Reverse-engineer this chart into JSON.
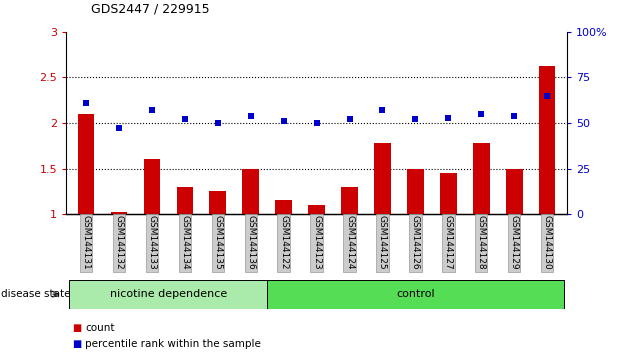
{
  "title": "GDS2447 / 229915",
  "categories": [
    "GSM144131",
    "GSM144132",
    "GSM144133",
    "GSM144134",
    "GSM144135",
    "GSM144136",
    "GSM144122",
    "GSM144123",
    "GSM144124",
    "GSM144125",
    "GSM144126",
    "GSM144127",
    "GSM144128",
    "GSM144129",
    "GSM144130"
  ],
  "bar_values": [
    2.1,
    1.02,
    1.6,
    1.3,
    1.25,
    1.5,
    1.15,
    1.1,
    1.3,
    1.78,
    1.5,
    1.45,
    1.78,
    1.5,
    2.62
  ],
  "scatter_values": [
    61,
    47,
    57,
    52,
    50,
    54,
    51,
    50,
    52,
    57,
    52,
    53,
    55,
    54,
    65
  ],
  "bar_color": "#cc0000",
  "scatter_color": "#0000cc",
  "ylim_left": [
    1.0,
    3.0
  ],
  "ylim_right": [
    0,
    100
  ],
  "yticks_left": [
    1.0,
    1.5,
    2.0,
    2.5,
    3.0
  ],
  "ytick_labels_left": [
    "1",
    "1.5",
    "2",
    "2.5",
    "3"
  ],
  "yticks_right": [
    0,
    25,
    50,
    75,
    100
  ],
  "ytick_labels_right": [
    "0",
    "25",
    "50",
    "75",
    "100%"
  ],
  "group1_label": "nicotine dependence",
  "group2_label": "control",
  "group1_color": "#aaeaaa",
  "group2_color": "#55dd55",
  "disease_state_label": "disease state",
  "legend_count_label": "count",
  "legend_percentile_label": "percentile rank within the sample",
  "group1_count": 6,
  "group2_count": 9,
  "dotted_yticks": [
    1.5,
    2.0,
    2.5
  ],
  "bar_bottom": 1.0,
  "bar_width": 0.5,
  "tick_label_fontsize": 6.5,
  "axis_fontsize": 8,
  "title_fontsize": 9
}
